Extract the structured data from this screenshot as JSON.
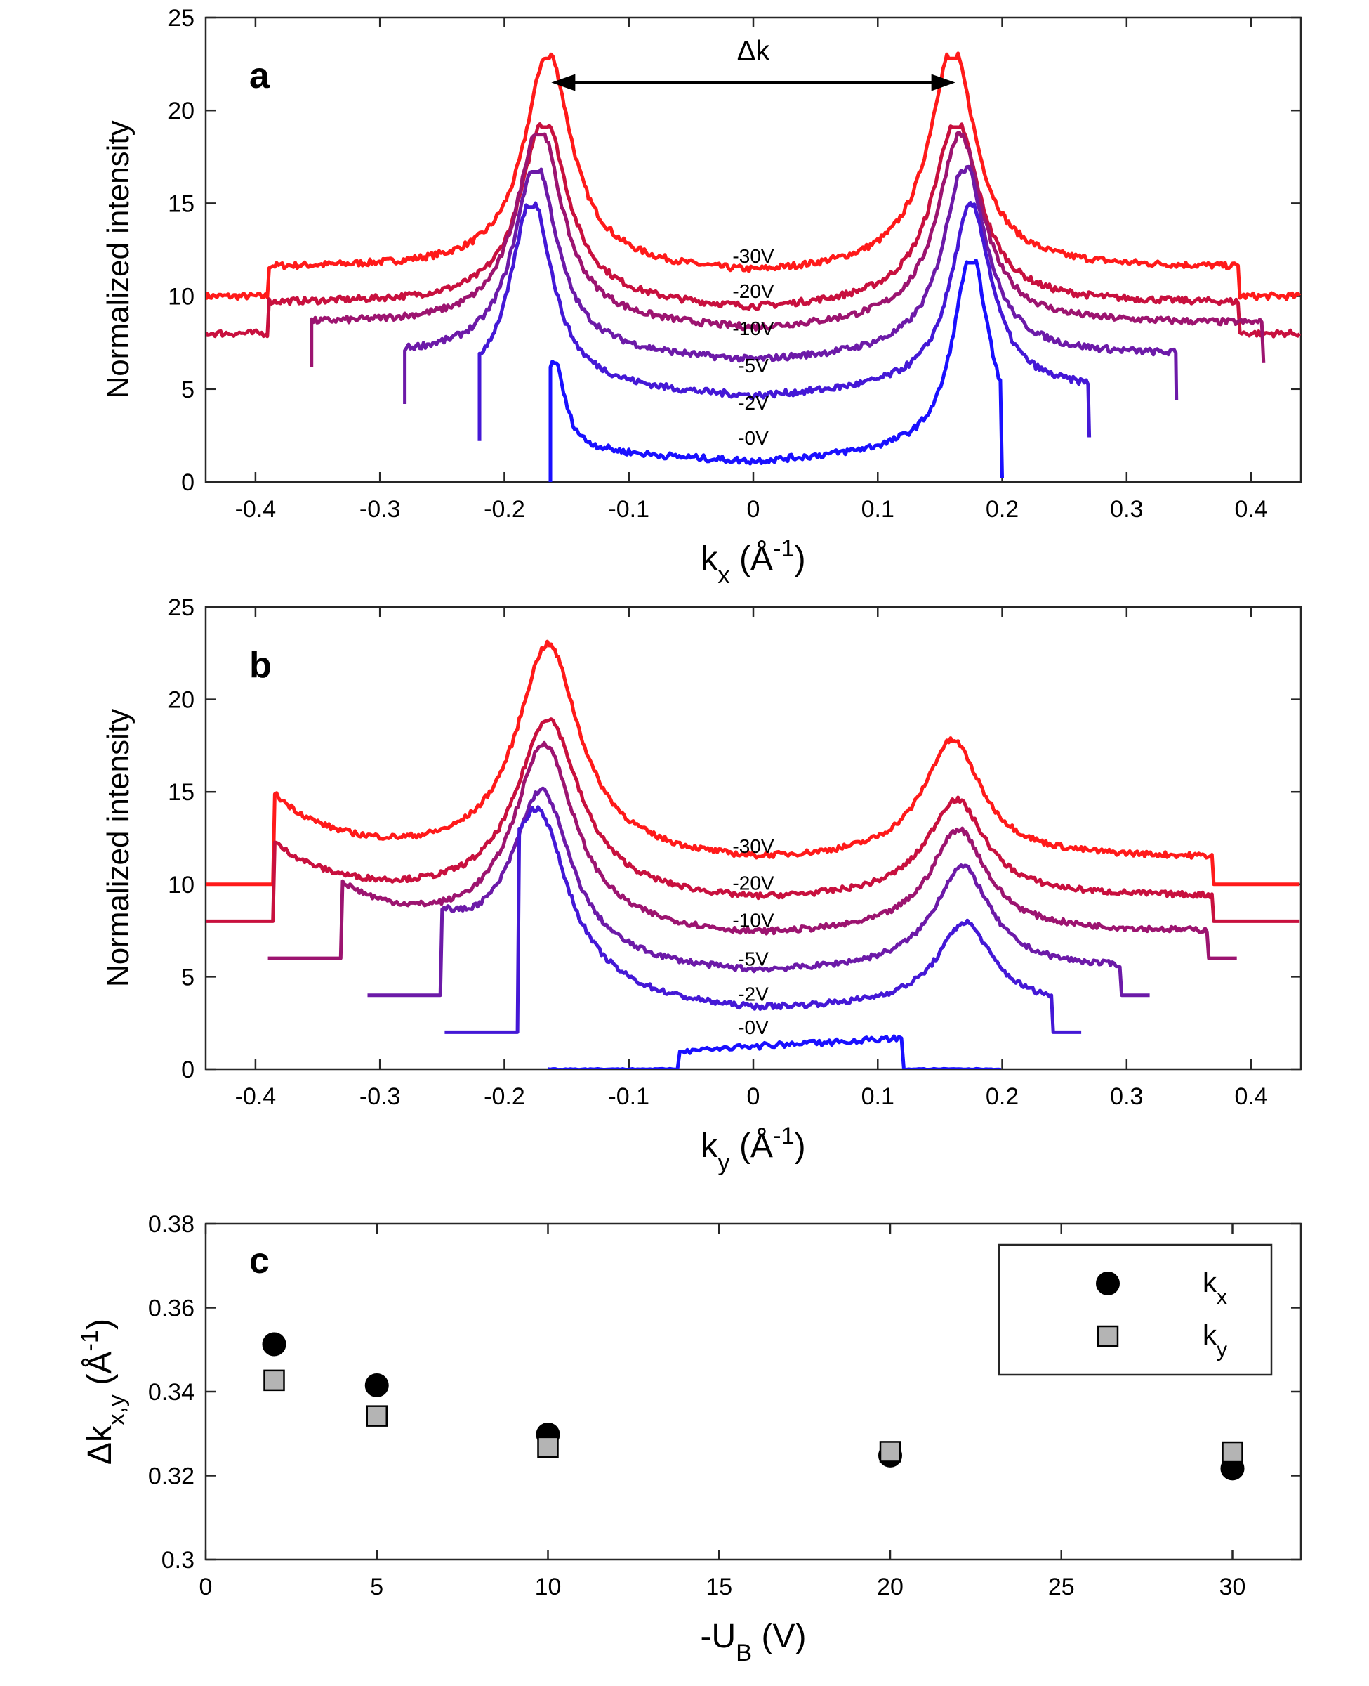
{
  "chart_data": [
    {
      "type": "line",
      "panel_label": "a",
      "xlabel": {
        "main": "k",
        "sub": "x",
        "tail_open": " (Å",
        "sup": "-1",
        "tail_close": ")"
      },
      "ylabel": "Normalized intensity",
      "xlim": [
        -0.44,
        0.44
      ],
      "ylim": [
        0,
        25
      ],
      "xticks": [
        -0.4,
        -0.3,
        -0.2,
        -0.1,
        0,
        0.1,
        0.2,
        0.3,
        0.4
      ],
      "xtick_labels": [
        "-0.4",
        "-0.3",
        "-0.2",
        "-0.1",
        "0",
        "0.1",
        "0.2",
        "0.3",
        "0.4"
      ],
      "yticks": [
        0,
        5,
        10,
        15,
        20,
        25
      ],
      "ytick_labels": [
        "0",
        "5",
        "10",
        "15",
        "20",
        "25"
      ],
      "annotation": {
        "text": "Δk",
        "arrow_from": -0.16,
        "arrow_to": 0.16,
        "y": 21.5
      },
      "series": [
        {
          "name": "-30V",
          "color": "#ff1a1a",
          "offset": 10,
          "x_range": [
            -0.44,
            0.44
          ],
          "peaks": [
            {
              "x": -0.165,
              "h": 11.6,
              "w": 0.026
            },
            {
              "x": 0.16,
              "h": 11.8,
              "w": 0.026
            }
          ],
          "baseline": 1.0,
          "label_x": 0,
          "label_y": 11.8
        },
        {
          "name": "-20V",
          "color": "#c8103e",
          "offset": 8,
          "x_range": [
            -0.44,
            0.44
          ],
          "peaks": [
            {
              "x": -0.168,
              "h": 10.0,
              "w": 0.026
            },
            {
              "x": 0.163,
              "h": 9.9,
              "w": 0.026
            }
          ],
          "baseline": 1.1,
          "label_x": 0,
          "label_y": 9.9
        },
        {
          "name": "-10V",
          "color": "#9c1470",
          "offset": 7,
          "x_range": [
            -0.355,
            0.41
          ],
          "peaks": [
            {
              "x": -0.172,
              "h": 10.7,
              "w": 0.025
            },
            {
              "x": 0.166,
              "h": 10.2,
              "w": 0.025
            }
          ],
          "baseline": 1.0,
          "label_x": 0,
          "label_y": 7.9
        },
        {
          "name": "-5V",
          "color": "#6c1aa8",
          "offset": 5,
          "x_range": [
            -0.28,
            0.34
          ],
          "peaks": [
            {
              "x": -0.175,
              "h": 10.4,
              "w": 0.024
            },
            {
              "x": 0.17,
              "h": 10.3,
              "w": 0.024
            }
          ],
          "baseline": 1.3,
          "label_x": 0,
          "label_y": 5.9
        },
        {
          "name": "-2V",
          "color": "#4418d6",
          "offset": 3,
          "x_range": [
            -0.22,
            0.27
          ],
          "peaks": [
            {
              "x": -0.178,
              "h": 10.4,
              "w": 0.023
            },
            {
              "x": 0.175,
              "h": 10.0,
              "w": 0.023
            }
          ],
          "baseline": 1.4,
          "label_x": 0,
          "label_y": 3.9
        },
        {
          "name": "-0V",
          "color": "#1a10ff",
          "offset": 0.8,
          "x_range": [
            -0.163,
            0.2
          ],
          "peaks": [
            {
              "x": -0.16,
              "h": 5.0,
              "w": 0.012
            },
            {
              "x": 0.175,
              "h": 10.8,
              "w": 0.02
            }
          ],
          "baseline": 0.2,
          "label_x": 0,
          "label_y": 2.0
        }
      ]
    },
    {
      "type": "line",
      "panel_label": "b",
      "xlabel": {
        "main": "k",
        "sub": "y",
        "tail_open": " (Å",
        "sup": "-1",
        "tail_close": ")"
      },
      "ylabel": "Normalized intensity",
      "xlim": [
        -0.44,
        0.44
      ],
      "ylim": [
        0,
        25
      ],
      "xticks": [
        -0.4,
        -0.3,
        -0.2,
        -0.1,
        0,
        0.1,
        0.2,
        0.3,
        0.4
      ],
      "xtick_labels": [
        "-0.4",
        "-0.3",
        "-0.2",
        "-0.1",
        "0",
        "0.1",
        "0.2",
        "0.3",
        "0.4"
      ],
      "yticks": [
        0,
        5,
        10,
        15,
        20,
        25
      ],
      "ytick_labels": [
        "0",
        "5",
        "10",
        "15",
        "20",
        "25"
      ],
      "series": [
        {
          "name": "-30V",
          "color": "#ff1a1a",
          "offset": 10,
          "step": {
            "x0": -0.385,
            "x1": 0.37,
            "h": 3.3
          },
          "peaks": [
            {
              "x": -0.165,
              "h": 11.5,
              "w": 0.035
            },
            {
              "x": 0.16,
              "h": 6.3,
              "w": 0.032
            }
          ],
          "baseline": 1.0,
          "label_x": 0,
          "label_y": 11.7
        },
        {
          "name": "-20V",
          "color": "#c8103e",
          "offset": 8,
          "step": {
            "x0": -0.385,
            "x1": 0.37,
            "h": 2.8
          },
          "peaks": [
            {
              "x": -0.165,
              "h": 9.6,
              "w": 0.035
            },
            {
              "x": 0.163,
              "h": 5.2,
              "w": 0.032
            }
          ],
          "baseline": 0.9,
          "label_x": 0,
          "label_y": 9.7
        },
        {
          "name": "-10V",
          "color": "#9c1470",
          "offset": 6,
          "step": {
            "x0": -0.33,
            "x1": 0.365,
            "h": 2.4
          },
          "peaks": [
            {
              "x": -0.168,
              "h": 10.1,
              "w": 0.034
            },
            {
              "x": 0.165,
              "h": 5.5,
              "w": 0.031
            }
          ],
          "baseline": 1.0,
          "label_x": 0,
          "label_y": 7.7
        },
        {
          "name": "-5V",
          "color": "#6c1aa8",
          "offset": 4,
          "step": {
            "x0": -0.25,
            "x1": 0.295,
            "h": 2.3
          },
          "peaks": [
            {
              "x": -0.17,
              "h": 9.2,
              "w": 0.033
            },
            {
              "x": 0.168,
              "h": 5.5,
              "w": 0.031
            }
          ],
          "baseline": 1.0,
          "label_x": 0,
          "label_y": 5.6
        },
        {
          "name": "-2V",
          "color": "#4418d6",
          "offset": 2,
          "step": {
            "x0": -0.188,
            "x1": 0.24,
            "h": 3.2
          },
          "peaks": [
            {
              "x": -0.172,
              "h": 8.3,
              "w": 0.032
            },
            {
              "x": 0.17,
              "h": 4.5,
              "w": 0.03
            }
          ],
          "baseline": 1.0,
          "label_x": 0,
          "label_y": 3.7
        },
        {
          "name": "-0V",
          "color": "#1a10ff",
          "offset": 0,
          "box": {
            "x0": -0.06,
            "x1": 0.12,
            "h": 1.0,
            "h_end": 1.7
          },
          "x_range": [
            -0.165,
            0.2
          ],
          "label_x": 0,
          "label_y": 1.9
        }
      ]
    },
    {
      "type": "scatter",
      "panel_label": "c",
      "xlabel": {
        "main": "-U",
        "sub": "B",
        "tail_open": " (V)",
        "sup": "",
        "tail_close": ""
      },
      "ylabel": {
        "main": "Δk",
        "sub": "x,y",
        "tail_open": " (Å",
        "sup": "-1",
        "tail_close": ")"
      },
      "xlim": [
        0,
        32
      ],
      "ylim": [
        0.3,
        0.38
      ],
      "xticks": [
        0,
        5,
        10,
        15,
        20,
        25,
        30
      ],
      "xtick_labels": [
        "0",
        "5",
        "10",
        "15",
        "20",
        "25",
        "30"
      ],
      "yticks": [
        0.3,
        0.32,
        0.34,
        0.36,
        0.38
      ],
      "ytick_labels": [
        "0.3",
        "0.32",
        "0.34",
        "0.36",
        "0.38"
      ],
      "legend_position": "top-right",
      "series": [
        {
          "name": "k",
          "name_sub": "x",
          "marker": "circle",
          "color": "#000000",
          "x": [
            2,
            5,
            10,
            20,
            30
          ],
          "y": [
            0.3513,
            0.3415,
            0.3298,
            0.3248,
            0.3217
          ]
        },
        {
          "name": "k",
          "name_sub": "y",
          "marker": "square",
          "color": "#b4b4b4",
          "x": [
            2,
            5,
            10,
            20,
            30
          ],
          "y": [
            0.3427,
            0.3342,
            0.3268,
            0.3257,
            0.3256
          ]
        }
      ]
    }
  ]
}
